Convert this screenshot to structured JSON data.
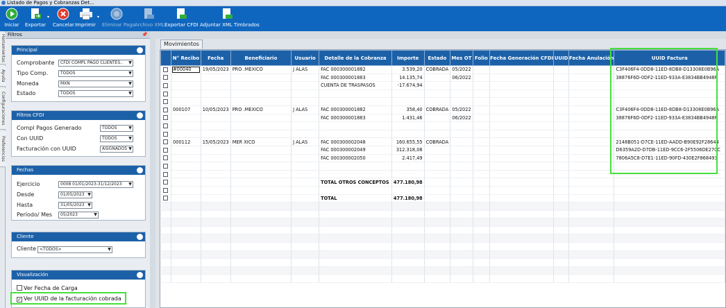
{
  "window": {
    "title": "Listado de Pagos y Cobranzas Det..."
  },
  "toolbar": {
    "iniciar": "Iniciar",
    "exportar": "Exportar",
    "cancelar": "Cancelar",
    "imprimir": "Imprimir",
    "eliminar_pago": "Eliminar Pago",
    "archivo_xml": "Archivo XML",
    "exportar_cfdi": "Exportar CFDI",
    "adjuntar_xml": "Adjuntar XML Timbrados"
  },
  "side_tabs": [
    "Herramientas",
    "Ayuda",
    "Configuraciones",
    "Preferencias"
  ],
  "filters": {
    "header": "Filtros",
    "principal": {
      "title": "Principal",
      "comprobante_label": "Comprobante",
      "comprobante_value": "CFDI COMPL PAGO CLIENTES..",
      "tipo_label": "Tipo Comp.",
      "tipo_value": "TODOS",
      "moneda_label": "Moneda",
      "moneda_value": "MXN",
      "estado_label": "Estado",
      "estado_value": "TODOS"
    },
    "cfdi": {
      "title": "Filtros CFDI",
      "compl_label": "Compl Pagos Generado",
      "compl_value": "TODOS",
      "uuid_label": "Con UUID",
      "uuid_value": "TODOS",
      "fact_label": "Facturación con UUID",
      "fact_value": "ASIGNADOS"
    },
    "fechas": {
      "title": "Fechas",
      "ejercicio_label": "Ejercicio",
      "ejercicio_value": "0008 01/01/2023-31/12/2023",
      "desde_label": "Desde",
      "desde_value": "01/05/2023",
      "hasta_label": "Hasta",
      "hasta_value": "31/05/2023",
      "periodo_label": "Período/ Mes",
      "periodo_value": "05/2023"
    },
    "cliente": {
      "title": "Cliente",
      "label": "Cliente",
      "value": "<TODOS>"
    },
    "visualizacion": {
      "title": "Visualización",
      "fecha_carga": "Ver Fecha de Carga",
      "ver_uuid": "Ver UUID de la facturación cobrada"
    }
  },
  "main": {
    "tab": "Movimientos",
    "columns": [
      "",
      "N° Recibo",
      "Fecha",
      "Beneficiario",
      "Usuario",
      "Detalle de la Cobranza",
      "Importe",
      "Estado",
      "Mes OT",
      "Folio",
      "Fecha Generación CFDI",
      "UUID",
      "Fecha Anulación",
      "UUID Factura"
    ],
    "rows": [
      [
        "",
        "#00040",
        "19/05/2023",
        "PRO                       .MEXICO",
        "J         ALAS",
        "FAC 000300001882",
        "3.539,20",
        "COBRADA",
        "05/2022",
        "",
        "",
        "",
        "",
        "C3F406F4-0DD8-11ED-8DB8-D13308E0B96A"
      ],
      [
        "",
        "",
        "",
        "",
        "",
        "FAC 000300001883",
        "14.135,74",
        "",
        "06/2022",
        "",
        "",
        "",
        "",
        "38876F6D-0DF2-11ED-933A-E3834BB4948F"
      ],
      [
        "",
        "",
        "",
        "",
        "",
        "CUENTA DE TRASPASOS",
        "-17.674,94",
        "",
        "",
        "",
        "",
        "",
        "",
        ""
      ],
      [
        "",
        "",
        "",
        "",
        "",
        "",
        "",
        "",
        "",
        "",
        "",
        "",
        "",
        ""
      ],
      [
        "",
        "",
        "",
        "",
        "",
        "",
        "",
        "",
        "",
        "",
        "",
        "",
        "",
        ""
      ],
      [
        "",
        "000107",
        "10/05/2023",
        "PRO                       .MEXICO",
        "J         ALAS",
        "FAC 000300001882",
        "358,40",
        "COBRADA",
        "05/2022",
        "",
        "",
        "",
        "",
        "C3F406F4-0DD8-11ED-8DB8-D13308E0B96A"
      ],
      [
        "",
        "",
        "",
        "",
        "",
        "FAC 000300001883",
        "1.431,46",
        "",
        "06/2022",
        "",
        "",
        "",
        "",
        "38876F6D-0DF2-11ED-933A-E3834BB4948F"
      ],
      [
        "",
        "",
        "",
        "",
        "",
        "",
        "",
        "",
        "",
        "",
        "",
        "",
        "",
        ""
      ],
      [
        "",
        "",
        "",
        "",
        "",
        "",
        "",
        "",
        "",
        "",
        "",
        "",
        "",
        ""
      ],
      [
        "",
        "000112",
        "15/05/2023",
        "MER                     XICO",
        "J         ALAS",
        "FAC 000300002048",
        "160.655,55",
        "COBRADA",
        "",
        "",
        "",
        "",
        "",
        "2148B051-D7CE-11ED-AADD-B90E92F28644"
      ],
      [
        "",
        "",
        "",
        "",
        "",
        "FAC 000300002049",
        "312.318,08",
        "",
        "",
        "",
        "",
        "",
        "",
        "D6359A2D-D7DB-11ED-9CC6-2F5506DE270C"
      ],
      [
        "",
        "",
        "",
        "",
        "",
        "FAC 000300002050",
        "2.417,49",
        "",
        "",
        "",
        "",
        "",
        "",
        "7806A5C8-D7E1-11ED-90FD-430E2F868493"
      ],
      [
        "",
        "",
        "",
        "",
        "",
        "",
        "",
        "",
        "",
        "",
        "",
        "",
        "",
        ""
      ],
      [
        "",
        "",
        "",
        "",
        "",
        "",
        "",
        "",
        "",
        "",
        "",
        "",
        "",
        ""
      ],
      [
        "",
        "",
        "",
        "",
        "",
        "TOTAL OTROS CONCEPTOS",
        "477.180,98",
        "",
        "",
        "",
        "",
        "",
        "",
        ""
      ],
      [
        "",
        "",
        "",
        "",
        "",
        "",
        "",
        "",
        "",
        "",
        "",
        "",
        "",
        ""
      ],
      [
        "",
        "",
        "",
        "",
        "",
        "TOTAL",
        "477.180,98",
        "",
        "",
        "",
        "",
        "",
        "",
        ""
      ]
    ],
    "checkbox_rows": 17,
    "empty_rows": 10
  },
  "colors": {
    "toolbar": "#0f66bf",
    "header": "#1c61a8",
    "highlight": "#44e03c"
  }
}
